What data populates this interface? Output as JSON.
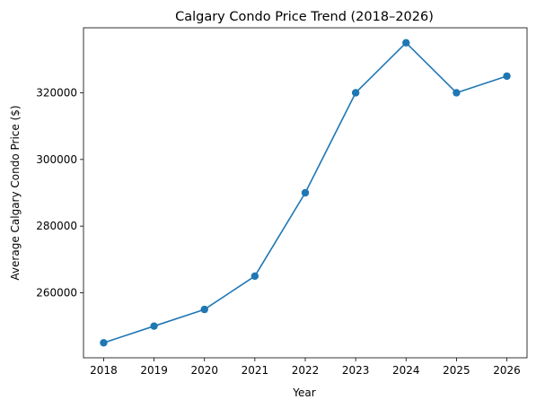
{
  "chart_data": {
    "type": "line",
    "title": "Calgary Condo Price Trend (2018–2026)",
    "xlabel": "Year",
    "ylabel": "Average Calgary Condo Price ($)",
    "x": [
      2018,
      2019,
      2020,
      2021,
      2022,
      2023,
      2024,
      2025,
      2026
    ],
    "series": [
      {
        "values": [
          245000,
          250000,
          255000,
          265000,
          290000,
          320000,
          335000,
          320000,
          325000
        ],
        "color": "#1f77b4",
        "marker": "circle"
      }
    ],
    "xlim": [
      2017.6,
      2026.4
    ],
    "ylim": [
      240500,
      339500
    ],
    "xticks": [
      "2018",
      "2019",
      "2020",
      "2021",
      "2022",
      "2023",
      "2024",
      "2025",
      "2026"
    ],
    "yticks": [
      "260000",
      "280000",
      "300000",
      "320000"
    ],
    "grid": false
  }
}
